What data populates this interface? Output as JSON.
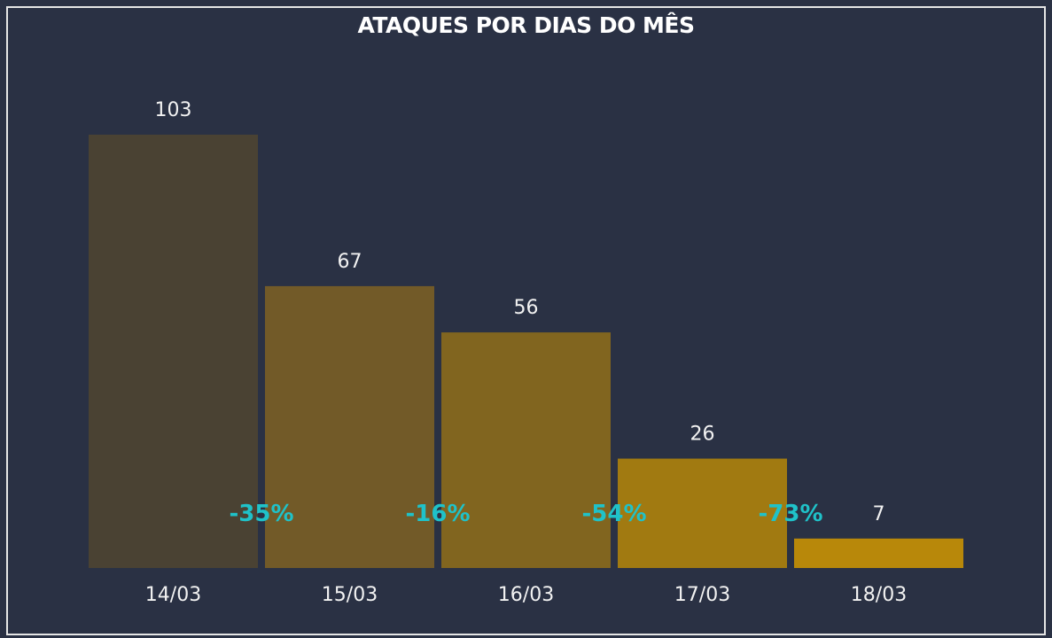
{
  "chart_data": {
    "type": "bar",
    "title": "ATAQUES POR DIAS DO MÊS",
    "categories": [
      "14/03",
      "15/03",
      "16/03",
      "17/03",
      "18/03"
    ],
    "values": [
      103,
      67,
      56,
      26,
      7
    ],
    "data_labels": [
      "103",
      "67",
      "56",
      "26",
      "7"
    ],
    "change_labels": [
      "-35%",
      "-16%",
      "-54%",
      "-73%"
    ],
    "bar_colors": [
      "#4a4233",
      "#725a28",
      "#81651f",
      "#a17a11",
      "#b8880a"
    ],
    "change_label_color": "#1fc2c9",
    "background_color": "#2a3144",
    "xlabel": "",
    "ylabel": "",
    "ylim": [
      0,
      103
    ],
    "grid": false,
    "legend": "none"
  }
}
